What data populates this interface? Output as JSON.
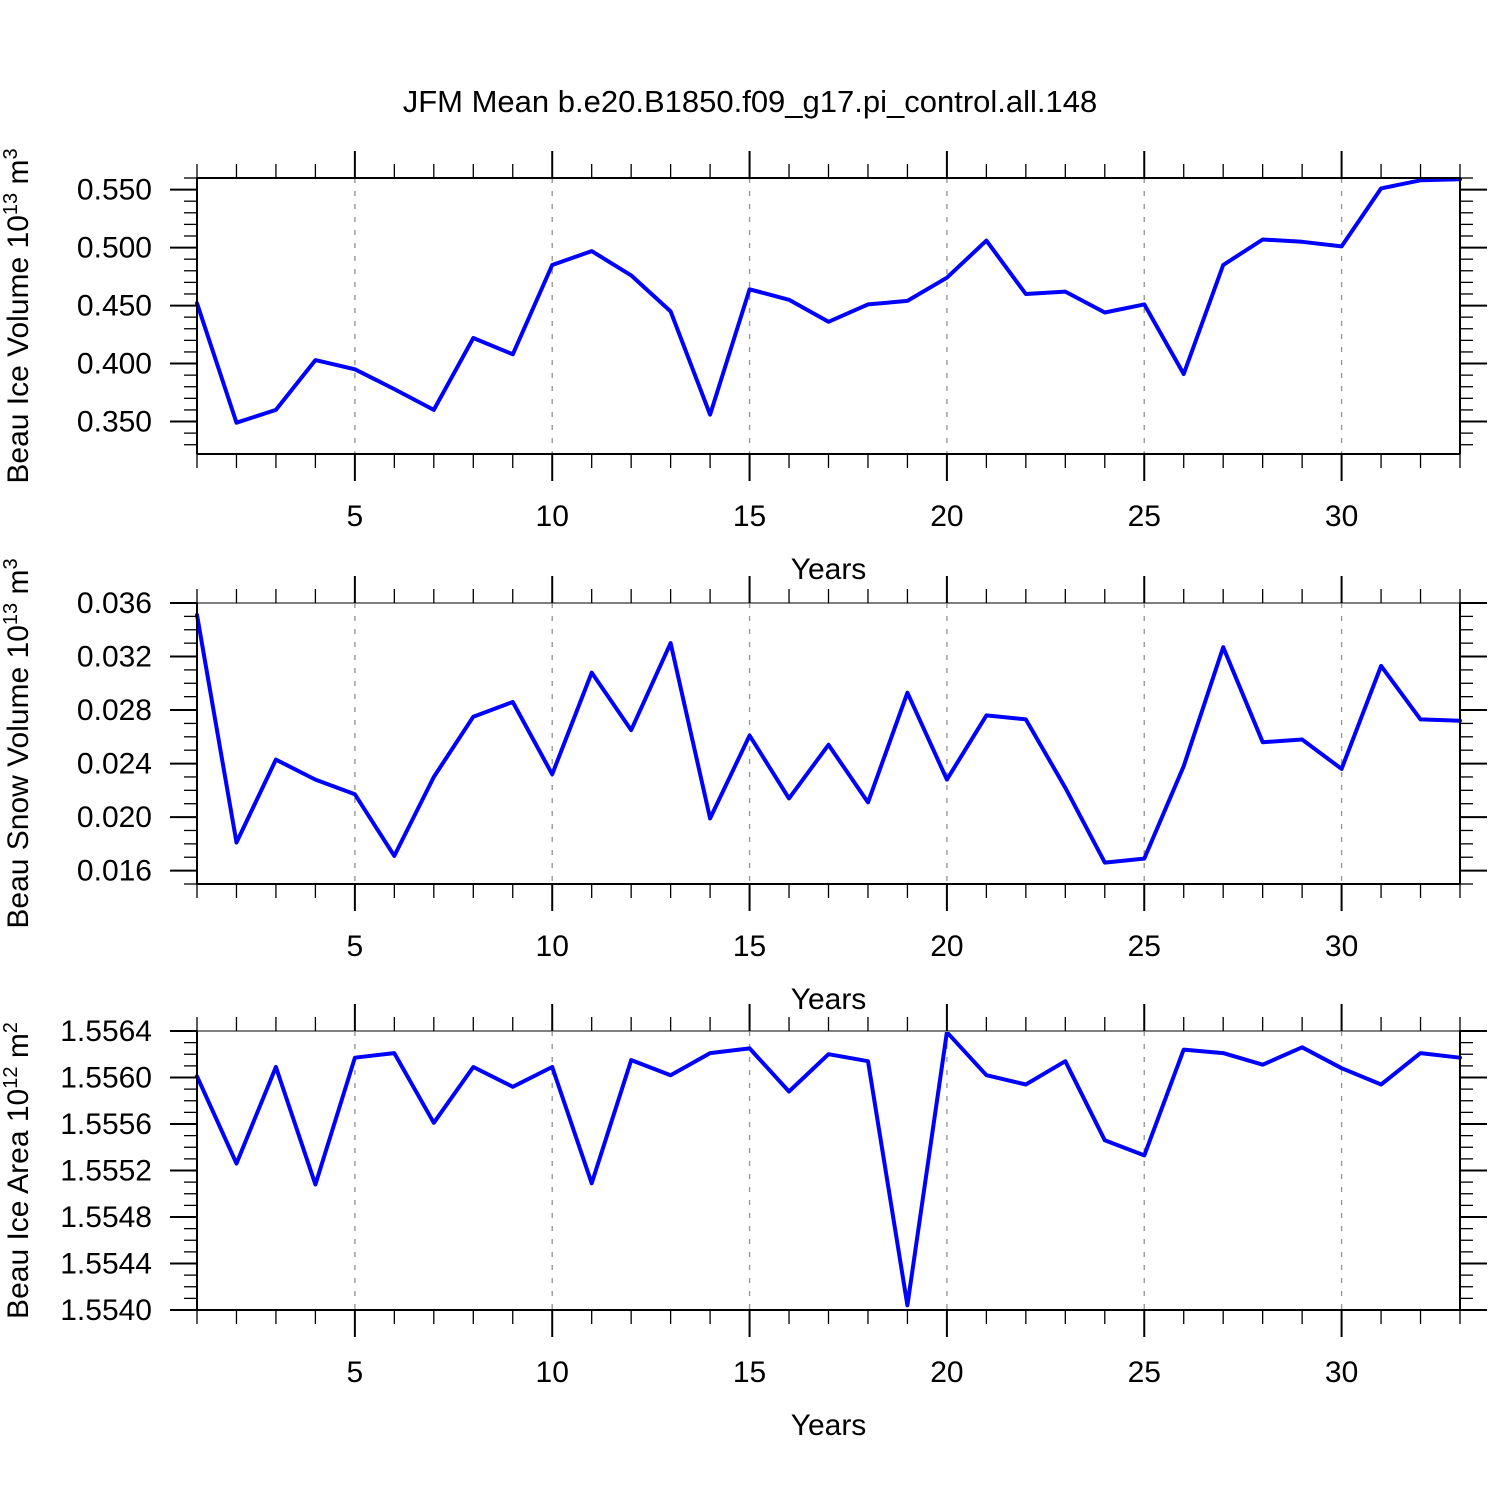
{
  "title": "JFM Mean b.e20.B1850.f09_g17.pi_control.all.148",
  "colors": {
    "line": "#0000ff",
    "grid": "#999999",
    "axis": "#000000",
    "muted_top_border": "#808080",
    "text": "#000000",
    "background": "#ffffff"
  },
  "x_axis": {
    "label": "Years",
    "start_year": 1,
    "end_year": 33,
    "major_ticks": [
      5,
      10,
      15,
      20,
      25,
      30
    ],
    "major_tick_labels": [
      "5",
      "10",
      "15",
      "20",
      "25",
      "30"
    ],
    "minor_tick_step": 1
  },
  "layout_hints": {
    "grid": "vertical dashed gray lines at major x ticks",
    "legend": "none",
    "panels_stacked": 3,
    "ticks": "outward on all four borders"
  },
  "chart_data": [
    {
      "type": "line",
      "title": "",
      "ylabel": "Beau Ice Volume 10^13 m^3",
      "ylabel_parts": [
        [
          "Beau Ice Volume 10",
          0
        ],
        [
          "13",
          1
        ],
        [
          " m",
          0
        ],
        [
          "3",
          1
        ]
      ],
      "xlabel": "Years",
      "ylim": [
        0.322,
        0.56
      ],
      "ytick_values": [
        0.35,
        0.4,
        0.45,
        0.5,
        0.55
      ],
      "ytick_labels": [
        "0.350",
        "0.400",
        "0.450",
        "0.500",
        "0.550"
      ],
      "yminor_step": 0.01,
      "x": [
        1,
        2,
        3,
        4,
        5,
        6,
        7,
        8,
        9,
        10,
        11,
        12,
        13,
        14,
        15,
        16,
        17,
        18,
        19,
        20,
        21,
        22,
        23,
        24,
        25,
        26,
        27,
        28,
        29,
        30,
        31,
        32,
        33
      ],
      "values": [
        0.452,
        0.349,
        0.36,
        0.403,
        0.395,
        0.378,
        0.36,
        0.422,
        0.408,
        0.485,
        0.497,
        0.476,
        0.445,
        0.356,
        0.464,
        0.455,
        0.436,
        0.451,
        0.454,
        0.474,
        0.506,
        0.46,
        0.462,
        0.444,
        0.451,
        0.391,
        0.485,
        0.507,
        0.505,
        0.501,
        0.551,
        0.558,
        0.559
      ]
    },
    {
      "type": "line",
      "title": "",
      "ylabel": "Beau Snow Volume 10^13 m^3",
      "ylabel_parts": [
        [
          "Beau Snow Volume 10",
          0
        ],
        [
          "13",
          1
        ],
        [
          " m",
          0
        ],
        [
          "3",
          1
        ]
      ],
      "xlabel": "Years",
      "ylim": [
        0.015,
        0.036
      ],
      "ytick_values": [
        0.016,
        0.02,
        0.024,
        0.028,
        0.032,
        0.036
      ],
      "ytick_labels": [
        "0.016",
        "0.020",
        "0.024",
        "0.028",
        "0.032",
        "0.036"
      ],
      "yminor_step": 0.001,
      "x": [
        1,
        2,
        3,
        4,
        5,
        6,
        7,
        8,
        9,
        10,
        11,
        12,
        13,
        14,
        15,
        16,
        17,
        18,
        19,
        20,
        21,
        22,
        23,
        24,
        25,
        26,
        27,
        28,
        29,
        30,
        31,
        32,
        33
      ],
      "values": [
        0.0351,
        0.0181,
        0.0243,
        0.0228,
        0.0217,
        0.0171,
        0.023,
        0.0275,
        0.0286,
        0.0232,
        0.0308,
        0.0265,
        0.033,
        0.0199,
        0.0261,
        0.0214,
        0.0254,
        0.0211,
        0.0293,
        0.0228,
        0.0276,
        0.0273,
        0.0222,
        0.0166,
        0.0169,
        0.0238,
        0.0327,
        0.0256,
        0.0258,
        0.0236,
        0.0313,
        0.0273,
        0.0272
      ]
    },
    {
      "type": "line",
      "title": "",
      "ylabel": "Beau Ice Area 10^12 m^2",
      "ylabel_parts": [
        [
          "Beau Ice Area 10",
          0
        ],
        [
          "12",
          1
        ],
        [
          " m",
          0
        ],
        [
          "2",
          1
        ]
      ],
      "xlabel": "Years",
      "ylim": [
        1.554,
        1.5564
      ],
      "ytick_values": [
        1.554,
        1.5544,
        1.5548,
        1.5552,
        1.5556,
        1.556,
        1.5564
      ],
      "ytick_labels": [
        "1.5540",
        "1.5544",
        "1.5548",
        "1.5552",
        "1.5556",
        "1.5560",
        "1.5564"
      ],
      "yminor_step": 0.0001,
      "x": [
        1,
        2,
        3,
        4,
        5,
        6,
        7,
        8,
        9,
        10,
        11,
        12,
        13,
        14,
        15,
        16,
        17,
        18,
        19,
        20,
        21,
        22,
        23,
        24,
        25,
        26,
        27,
        28,
        29,
        30,
        31,
        32,
        33
      ],
      "values": [
        1.55601,
        1.55526,
        1.55609,
        1.55508,
        1.55617,
        1.55621,
        1.55561,
        1.55609,
        1.55592,
        1.55609,
        1.55509,
        1.55615,
        1.55602,
        1.55621,
        1.55625,
        1.55588,
        1.5562,
        1.55614,
        1.55404,
        1.55639,
        1.55602,
        1.55594,
        1.55614,
        1.55546,
        1.55533,
        1.55624,
        1.55621,
        1.55611,
        1.55626,
        1.55608,
        1.55594,
        1.55621,
        1.55617
      ]
    }
  ]
}
